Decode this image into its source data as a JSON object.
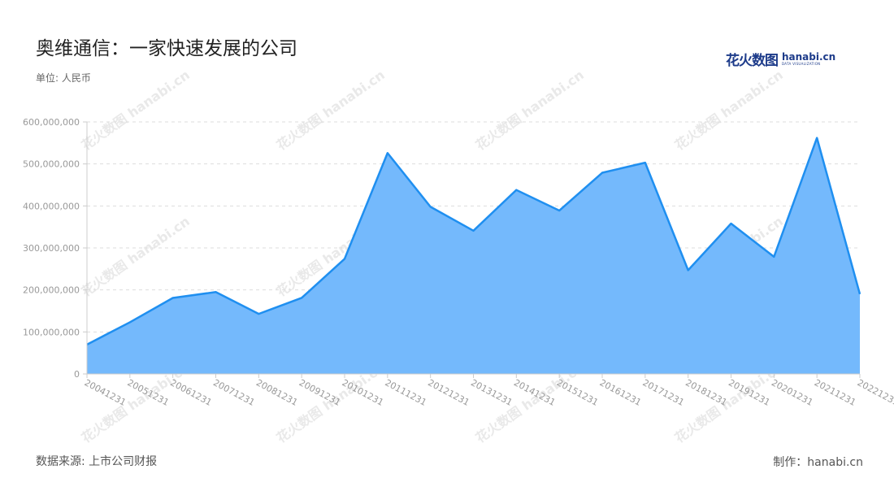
{
  "title": "奥维通信：一家快速发展的公司",
  "unit": "单位: 人民币",
  "logo": {
    "cn": "花火数图",
    "en": "hanabi.cn",
    "en_sub": "DATA VISUALIZATION"
  },
  "watermark": "花火数图 hanabi.cn",
  "footer": {
    "source": "数据来源: 上市公司财报",
    "credit": "制作：hanabi.cn"
  },
  "chart_data": {
    "type": "area",
    "title": "奥维通信：一家快速发展的公司",
    "ylabel": "单位: 人民币",
    "xlabel": "",
    "categories": [
      "20041231",
      "20051231",
      "20061231",
      "20071231",
      "20081231",
      "20091231",
      "20101231",
      "20111231",
      "20121231",
      "20131231",
      "20141231",
      "20151231",
      "20161231",
      "20171231",
      "20181231",
      "20191231",
      "20201231",
      "20211231",
      "20221231"
    ],
    "values": [
      70000000,
      123000000,
      181000000,
      195000000,
      143000000,
      181000000,
      274000000,
      526000000,
      398000000,
      341000000,
      438000000,
      389000000,
      479000000,
      503000000,
      247000000,
      358000000,
      279000000,
      562000000,
      190000000
    ],
    "ylim": [
      0,
      600000000
    ],
    "yticks": [
      "0",
      "100,000,000",
      "200,000,000",
      "300,000,000",
      "400,000,000",
      "500,000,000",
      "600,000,000"
    ],
    "grid": true,
    "colors": {
      "fill": "#74b9fc",
      "line": "#1f8ff0",
      "grid": "#dddddd",
      "axis": "#cccccc",
      "label": "#999999"
    }
  }
}
